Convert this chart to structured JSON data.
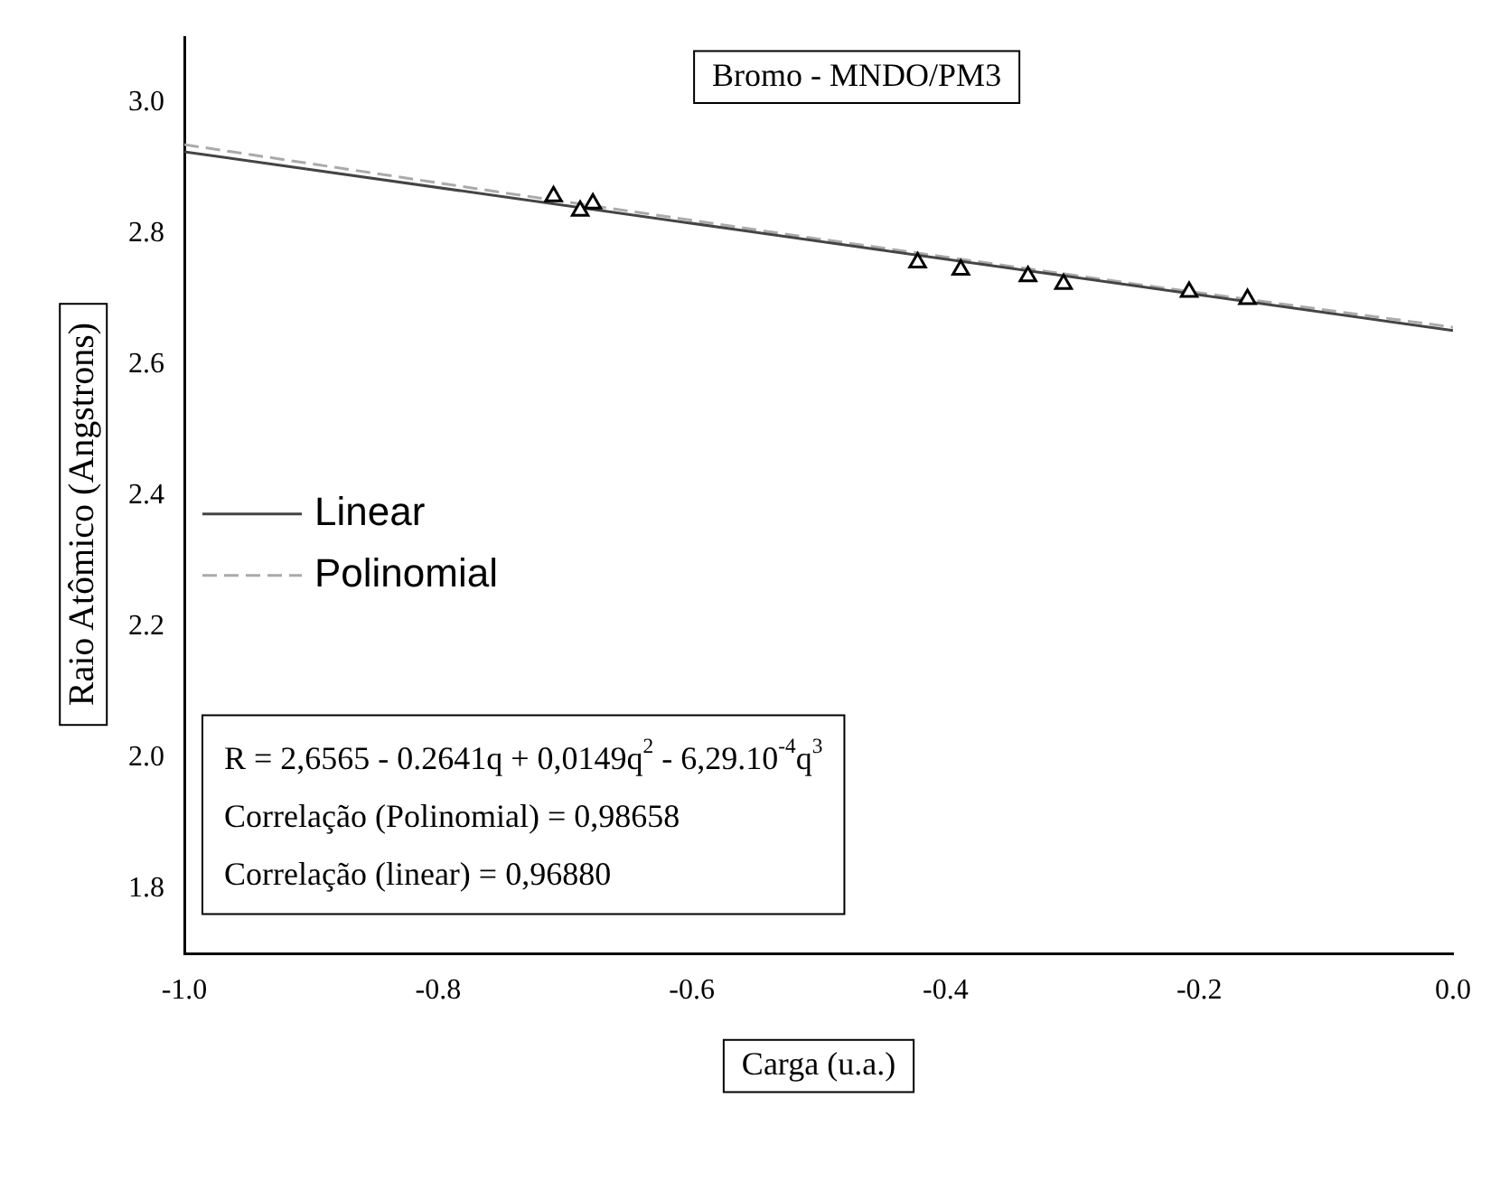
{
  "chart_data": {
    "type": "scatter",
    "title": "Bromo - MNDO/PM3",
    "xlabel": "Carga (u.a.)",
    "ylabel": "Raio Atômico (Angstrons)",
    "xlim": [
      -1.0,
      0.0
    ],
    "ylim": [
      1.7,
      3.1
    ],
    "xticks": [
      {
        "value": -1.0,
        "label": "-1.0"
      },
      {
        "value": -0.8,
        "label": "-0.8"
      },
      {
        "value": -0.6,
        "label": "-0.6"
      },
      {
        "value": -0.4,
        "label": "-0.4"
      },
      {
        "value": -0.2,
        "label": "-0.2"
      },
      {
        "value": 0.0,
        "label": "0.0"
      }
    ],
    "yticks": [
      {
        "value": 1.8,
        "label": "1.8"
      },
      {
        "value": 2.0,
        "label": "2.0"
      },
      {
        "value": 2.2,
        "label": "2.2"
      },
      {
        "value": 2.4,
        "label": "2.4"
      },
      {
        "value": 2.6,
        "label": "2.6"
      },
      {
        "value": 2.8,
        "label": "2.8"
      },
      {
        "value": 3.0,
        "label": "3.0"
      }
    ],
    "grid": false,
    "legend": "left",
    "series": [
      {
        "type": "scatter",
        "color": "#000000",
        "marker": "triangle",
        "x": [
          -0.709,
          -0.688,
          -0.678,
          -0.422,
          -0.388,
          -0.335,
          -0.307,
          -0.208,
          -0.162
        ],
        "values": [
          2.857,
          2.835,
          2.846,
          2.756,
          2.745,
          2.735,
          2.723,
          2.711,
          2.7
        ]
      },
      {
        "type": "line",
        "name": "Linear",
        "color": "#444444",
        "line_style": "solid",
        "marker": "none",
        "x": [
          -1.0,
          0.0
        ],
        "values": [
          2.925,
          2.652
        ]
      },
      {
        "type": "line",
        "name": "Polinomial",
        "color": "#aaaaaa",
        "line_style": "dashed",
        "marker": "none",
        "x": [
          -1.0,
          -0.75,
          -0.5,
          -0.25,
          0.0
        ],
        "values": [
          2.936,
          2.863,
          2.792,
          2.723,
          2.657
        ]
      }
    ],
    "annotations": [
      "R = 2,6565 - 0.2641q + 0,0149q$^{2}$ - 6,29.10$^{-4}$q$^{3}$",
      "Correlação (Polinomial) = 0,98658",
      "Correlação (linear) = 0,96880"
    ]
  }
}
